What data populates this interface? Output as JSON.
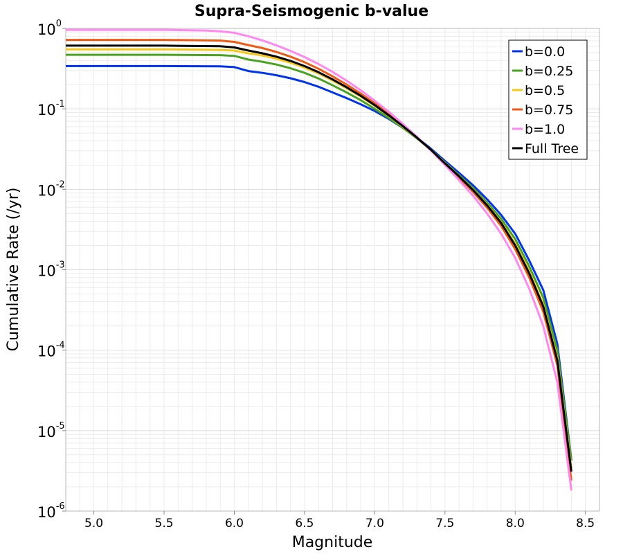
{
  "chart_data": {
    "type": "line",
    "title": "Supra-Seismogenic b-value",
    "xlabel": "Magnitude",
    "ylabel": "Cumulative Rate (/yr)",
    "xlim": [
      4.8,
      8.6
    ],
    "ylim": [
      1e-06,
      1
    ],
    "yscale": "log",
    "grid": true,
    "legend_position": "top-right",
    "x_ticks": [
      5.0,
      5.5,
      6.0,
      6.5,
      7.0,
      7.5,
      8.0,
      8.5
    ],
    "x_tick_labels": [
      "5.0",
      "5.5",
      "6.0",
      "6.5",
      "7.0",
      "7.5",
      "8.0",
      "8.5"
    ],
    "y_ticks": [
      {
        "value": 1,
        "base": "10",
        "exp": "0"
      },
      {
        "value": 0.1,
        "base": "10",
        "exp": "-1"
      },
      {
        "value": 0.01,
        "base": "10",
        "exp": "-2"
      },
      {
        "value": 0.001,
        "base": "10",
        "exp": "-3"
      },
      {
        "value": 0.0001,
        "base": "10",
        "exp": "-4"
      },
      {
        "value": 1e-05,
        "base": "10",
        "exp": "-5"
      },
      {
        "value": 1e-06,
        "base": "10",
        "exp": "-6"
      }
    ],
    "series": [
      {
        "name": "b=0.0",
        "color": "#0033ee",
        "points": [
          [
            4.8,
            0.34
          ],
          [
            5.5,
            0.34
          ],
          [
            5.9,
            0.338
          ],
          [
            6.0,
            0.33
          ],
          [
            6.1,
            0.295
          ],
          [
            6.2,
            0.28
          ],
          [
            6.3,
            0.262
          ],
          [
            6.4,
            0.24
          ],
          [
            6.5,
            0.215
          ],
          [
            6.6,
            0.188
          ],
          [
            6.7,
            0.16
          ],
          [
            6.8,
            0.136
          ],
          [
            6.9,
            0.114
          ],
          [
            7.0,
            0.094
          ],
          [
            7.1,
            0.075
          ],
          [
            7.2,
            0.058
          ],
          [
            7.3,
            0.044
          ],
          [
            7.4,
            0.032
          ],
          [
            7.5,
            0.0225
          ],
          [
            7.6,
            0.016
          ],
          [
            7.7,
            0.0112
          ],
          [
            7.8,
            0.0075
          ],
          [
            7.9,
            0.0048
          ],
          [
            8.0,
            0.0028
          ],
          [
            8.1,
            0.0013
          ],
          [
            8.2,
            0.00056
          ],
          [
            8.3,
            0.00012
          ],
          [
            8.4,
            4.3e-06
          ]
        ]
      },
      {
        "name": "b=0.25",
        "color": "#4aa320",
        "points": [
          [
            4.8,
            0.47
          ],
          [
            5.5,
            0.47
          ],
          [
            5.9,
            0.465
          ],
          [
            6.0,
            0.455
          ],
          [
            6.1,
            0.41
          ],
          [
            6.2,
            0.385
          ],
          [
            6.3,
            0.355
          ],
          [
            6.4,
            0.32
          ],
          [
            6.5,
            0.28
          ],
          [
            6.6,
            0.238
          ],
          [
            6.7,
            0.196
          ],
          [
            6.8,
            0.16
          ],
          [
            6.9,
            0.128
          ],
          [
            7.0,
            0.1
          ],
          [
            7.1,
            0.077
          ],
          [
            7.2,
            0.058
          ],
          [
            7.3,
            0.043
          ],
          [
            7.4,
            0.031
          ],
          [
            7.5,
            0.0215
          ],
          [
            7.6,
            0.015
          ],
          [
            7.7,
            0.0104
          ],
          [
            7.8,
            0.0068
          ],
          [
            7.9,
            0.0043
          ],
          [
            8.0,
            0.0024
          ],
          [
            8.1,
            0.0011
          ],
          [
            8.2,
            0.00045
          ],
          [
            8.3,
            0.0001
          ],
          [
            8.4,
            4.2e-06
          ]
        ]
      },
      {
        "name": "b=0.5",
        "color": "#f5c81a",
        "points": [
          [
            4.8,
            0.55
          ],
          [
            5.5,
            0.55
          ],
          [
            5.9,
            0.54
          ],
          [
            6.0,
            0.53
          ],
          [
            6.1,
            0.49
          ],
          [
            6.2,
            0.46
          ],
          [
            6.3,
            0.42
          ],
          [
            6.4,
            0.375
          ],
          [
            6.5,
            0.325
          ],
          [
            6.6,
            0.275
          ],
          [
            6.7,
            0.224
          ],
          [
            6.8,
            0.18
          ],
          [
            6.9,
            0.142
          ],
          [
            7.0,
            0.109
          ],
          [
            7.1,
            0.082
          ],
          [
            7.2,
            0.06
          ],
          [
            7.3,
            0.044
          ],
          [
            7.4,
            0.031
          ],
          [
            7.5,
            0.0212
          ],
          [
            7.6,
            0.0146
          ],
          [
            7.7,
            0.0099
          ],
          [
            7.8,
            0.0064
          ],
          [
            7.9,
            0.0039
          ],
          [
            8.0,
            0.0021
          ],
          [
            8.1,
            0.00095
          ],
          [
            8.2,
            0.00037
          ],
          [
            8.3,
            8e-05
          ],
          [
            8.4,
            3.4e-06
          ]
        ]
      },
      {
        "name": "b=0.75",
        "color": "#ee5a14",
        "points": [
          [
            4.8,
            0.72
          ],
          [
            5.5,
            0.72
          ],
          [
            5.9,
            0.705
          ],
          [
            6.0,
            0.68
          ],
          [
            6.1,
            0.62
          ],
          [
            6.2,
            0.57
          ],
          [
            6.3,
            0.51
          ],
          [
            6.4,
            0.445
          ],
          [
            6.5,
            0.38
          ],
          [
            6.6,
            0.315
          ],
          [
            6.7,
            0.253
          ],
          [
            6.8,
            0.2
          ],
          [
            6.9,
            0.155
          ],
          [
            7.0,
            0.117
          ],
          [
            7.1,
            0.086
          ],
          [
            7.2,
            0.062
          ],
          [
            7.3,
            0.044
          ],
          [
            7.4,
            0.0305
          ],
          [
            7.5,
            0.0205
          ],
          [
            7.6,
            0.014
          ],
          [
            7.7,
            0.0093
          ],
          [
            7.8,
            0.0059
          ],
          [
            7.9,
            0.0035
          ],
          [
            8.0,
            0.0018
          ],
          [
            8.1,
            0.0008
          ],
          [
            8.2,
            0.0003
          ],
          [
            8.3,
            6.5e-05
          ],
          [
            8.4,
            2.4e-06
          ]
        ]
      },
      {
        "name": "b=1.0",
        "color": "#ff88ee",
        "points": [
          [
            4.8,
            0.96
          ],
          [
            5.5,
            0.96
          ],
          [
            5.8,
            0.94
          ],
          [
            5.9,
            0.92
          ],
          [
            6.0,
            0.88
          ],
          [
            6.1,
            0.8
          ],
          [
            6.2,
            0.71
          ],
          [
            6.3,
            0.615
          ],
          [
            6.4,
            0.525
          ],
          [
            6.5,
            0.44
          ],
          [
            6.6,
            0.36
          ],
          [
            6.7,
            0.288
          ],
          [
            6.8,
            0.224
          ],
          [
            6.9,
            0.17
          ],
          [
            7.0,
            0.126
          ],
          [
            7.1,
            0.092
          ],
          [
            7.2,
            0.065
          ],
          [
            7.3,
            0.045
          ],
          [
            7.4,
            0.0305
          ],
          [
            7.5,
            0.02
          ],
          [
            7.6,
            0.013
          ],
          [
            7.7,
            0.0083
          ],
          [
            7.8,
            0.005
          ],
          [
            7.9,
            0.0028
          ],
          [
            8.0,
            0.0014
          ],
          [
            8.1,
            0.00058
          ],
          [
            8.2,
            0.0002
          ],
          [
            8.3,
            4e-05
          ],
          [
            8.4,
            1.8e-06
          ]
        ]
      },
      {
        "name": "Full Tree",
        "color": "#000000",
        "points": [
          [
            4.8,
            0.61
          ],
          [
            5.5,
            0.61
          ],
          [
            5.9,
            0.6
          ],
          [
            6.0,
            0.58
          ],
          [
            6.1,
            0.53
          ],
          [
            6.2,
            0.49
          ],
          [
            6.3,
            0.445
          ],
          [
            6.4,
            0.395
          ],
          [
            6.5,
            0.34
          ],
          [
            6.6,
            0.285
          ],
          [
            6.7,
            0.232
          ],
          [
            6.8,
            0.185
          ],
          [
            6.9,
            0.145
          ],
          [
            7.0,
            0.111
          ],
          [
            7.1,
            0.083
          ],
          [
            7.2,
            0.061
          ],
          [
            7.3,
            0.044
          ],
          [
            7.4,
            0.031
          ],
          [
            7.5,
            0.021
          ],
          [
            7.6,
            0.0145
          ],
          [
            7.7,
            0.0098
          ],
          [
            7.8,
            0.0063
          ],
          [
            7.9,
            0.0038
          ],
          [
            8.0,
            0.002
          ],
          [
            8.1,
            0.0009
          ],
          [
            8.2,
            0.00035
          ],
          [
            8.3,
            7.5e-05
          ],
          [
            8.4,
            3.1e-06
          ]
        ]
      }
    ]
  }
}
